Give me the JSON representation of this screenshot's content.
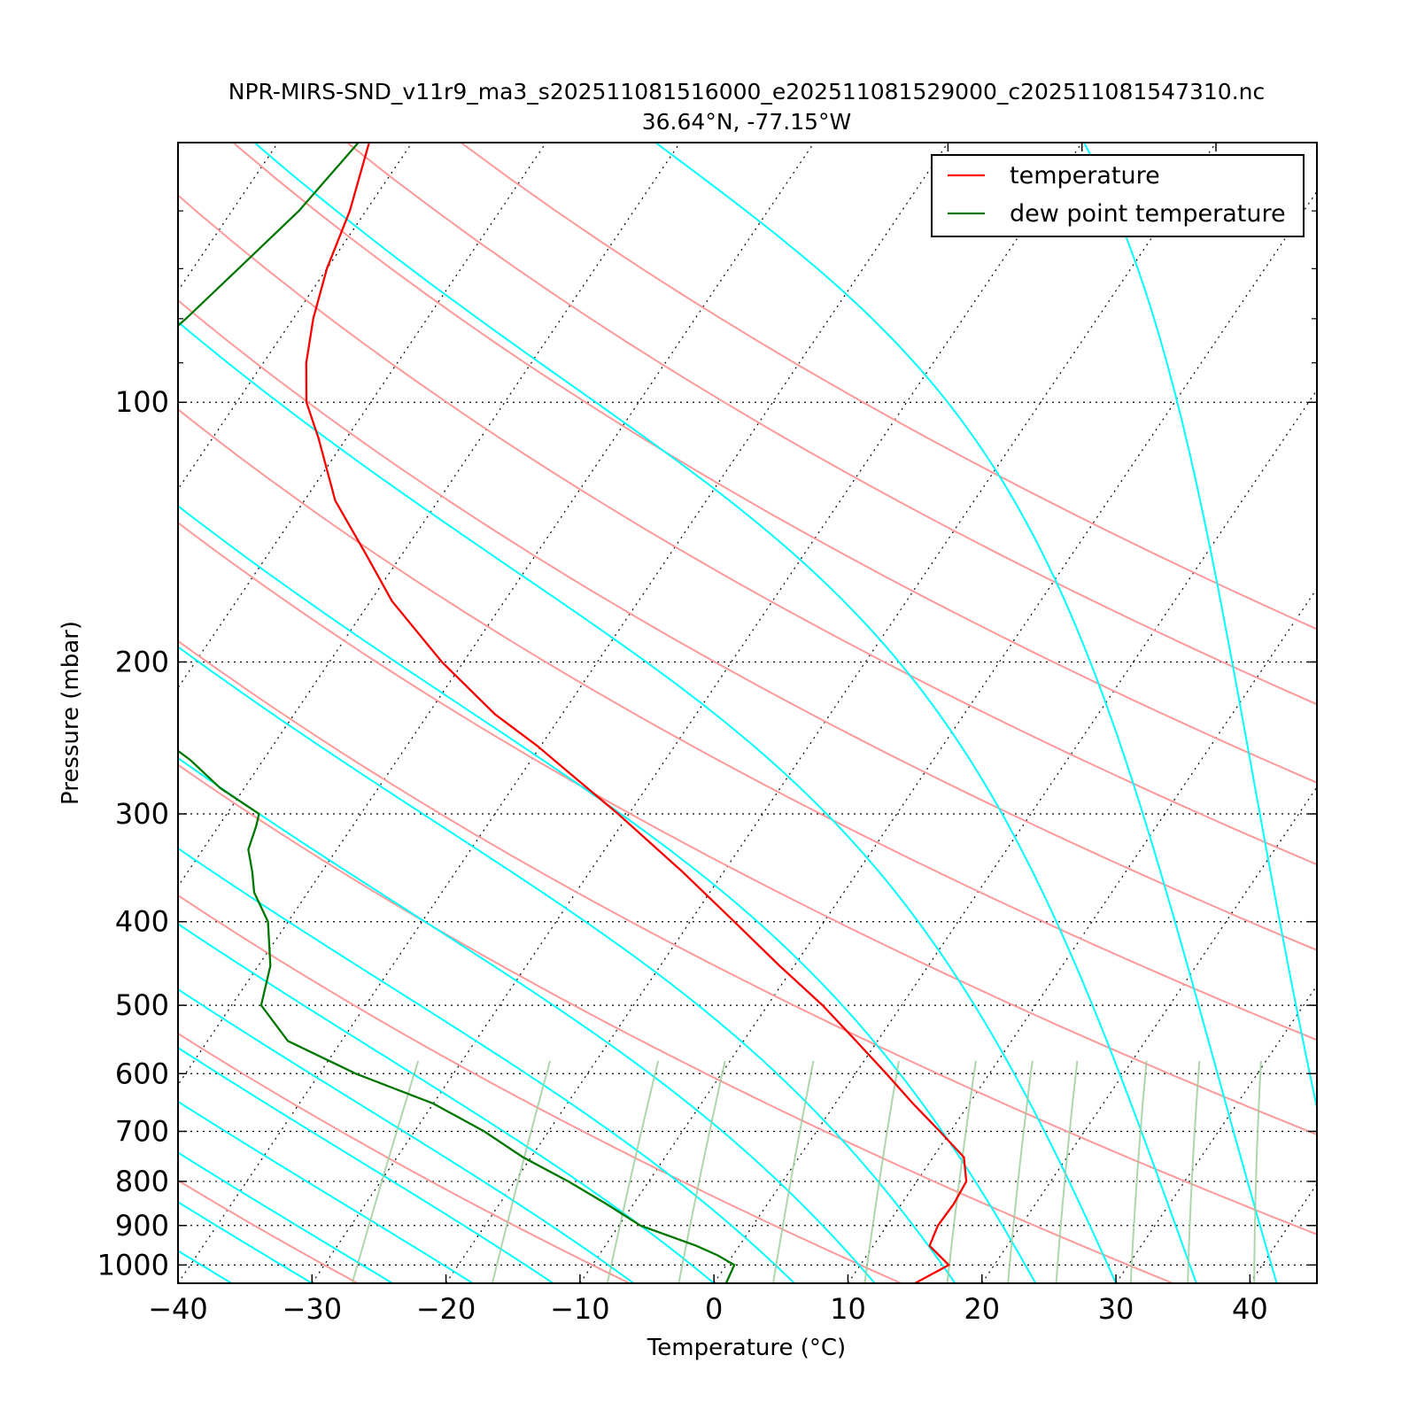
{
  "chart_data": {
    "type": "line",
    "title": "NPR-MIRS-SND_v11r9_ma3_s202511081516000_e202511081529000_c202511081547310.nc",
    "subtitle": "36.64°N, -77.15°W",
    "xlabel": "Temperature (°C)",
    "ylabel": "Pressure (mbar)",
    "xlim": [
      -40,
      45
    ],
    "ylim": [
      1050,
      50
    ],
    "y_scale": "log",
    "skew": "skew-T",
    "x_ticks": [
      -40,
      -30,
      -20,
      -10,
      0,
      10,
      20,
      30,
      40
    ],
    "x_tick_labels": [
      "−40",
      "−30",
      "−20",
      "−10",
      "0",
      "10",
      "20",
      "30",
      "40"
    ],
    "y_ticks": [
      100,
      200,
      300,
      400,
      500,
      600,
      700,
      800,
      900,
      1000
    ],
    "y_tick_labels": [
      "100",
      "200",
      "300",
      "400",
      "500",
      "600",
      "700",
      "800",
      "900",
      "1000"
    ],
    "legend_position": "top-right",
    "series": [
      {
        "name": "temperature",
        "color": "#ff0000",
        "p": [
          1050,
          1000,
          950,
          900,
          850,
          800,
          750,
          700,
          650,
          600,
          550,
          500,
          450,
          400,
          350,
          300,
          270,
          250,
          230,
          200,
          170,
          150,
          130,
          110,
          100,
          90,
          80,
          70,
          60,
          50
        ],
        "t": [
          15.0,
          16.6,
          14.2,
          13.8,
          13.9,
          13.7,
          12.3,
          9.2,
          5.8,
          2.3,
          -1.6,
          -5.9,
          -11.1,
          -16.7,
          -23.1,
          -30.8,
          -36.3,
          -40.3,
          -45.0,
          -51.6,
          -58.4,
          -62.7,
          -67.7,
          -72.1,
          -74.8,
          -76.8,
          -78.5,
          -80.0,
          -81.2,
          -83.2
        ]
      },
      {
        "name": "dew point temperature",
        "color": "#007700",
        "p": [
          1050,
          1000,
          975,
          950,
          900,
          850,
          800,
          750,
          700,
          650,
          600,
          550,
          500,
          450,
          400,
          370,
          350,
          330,
          310,
          300,
          280,
          260,
          250,
          240,
          220,
          200,
          180,
          160,
          150,
          140,
          130,
          120,
          110,
          100,
          90,
          80,
          70,
          60,
          50
        ],
        "t": [
          0.9,
          0.6,
          -1.1,
          -3.2,
          -8.4,
          -12.0,
          -16.0,
          -20.6,
          -24.8,
          -30.0,
          -37.3,
          -44.0,
          -47.8,
          -49.1,
          -51.5,
          -54.0,
          -55.2,
          -56.6,
          -57.2,
          -57.6,
          -61.8,
          -65.4,
          -67.6,
          -70.4,
          -75.0,
          -80.4,
          -84.6,
          -88.4,
          -90.3,
          -91.3,
          -91.9,
          -91.7,
          -91.8,
          -90.7,
          -89.5,
          -88.0,
          -86.6,
          -85.0,
          -84.0
        ]
      }
    ],
    "background_lines": {
      "dry_adiabats": "#ff9999",
      "moist_adiabats": "#00ffff",
      "mixing_ratio": "#99cc99",
      "isotherms": "#000000"
    }
  }
}
